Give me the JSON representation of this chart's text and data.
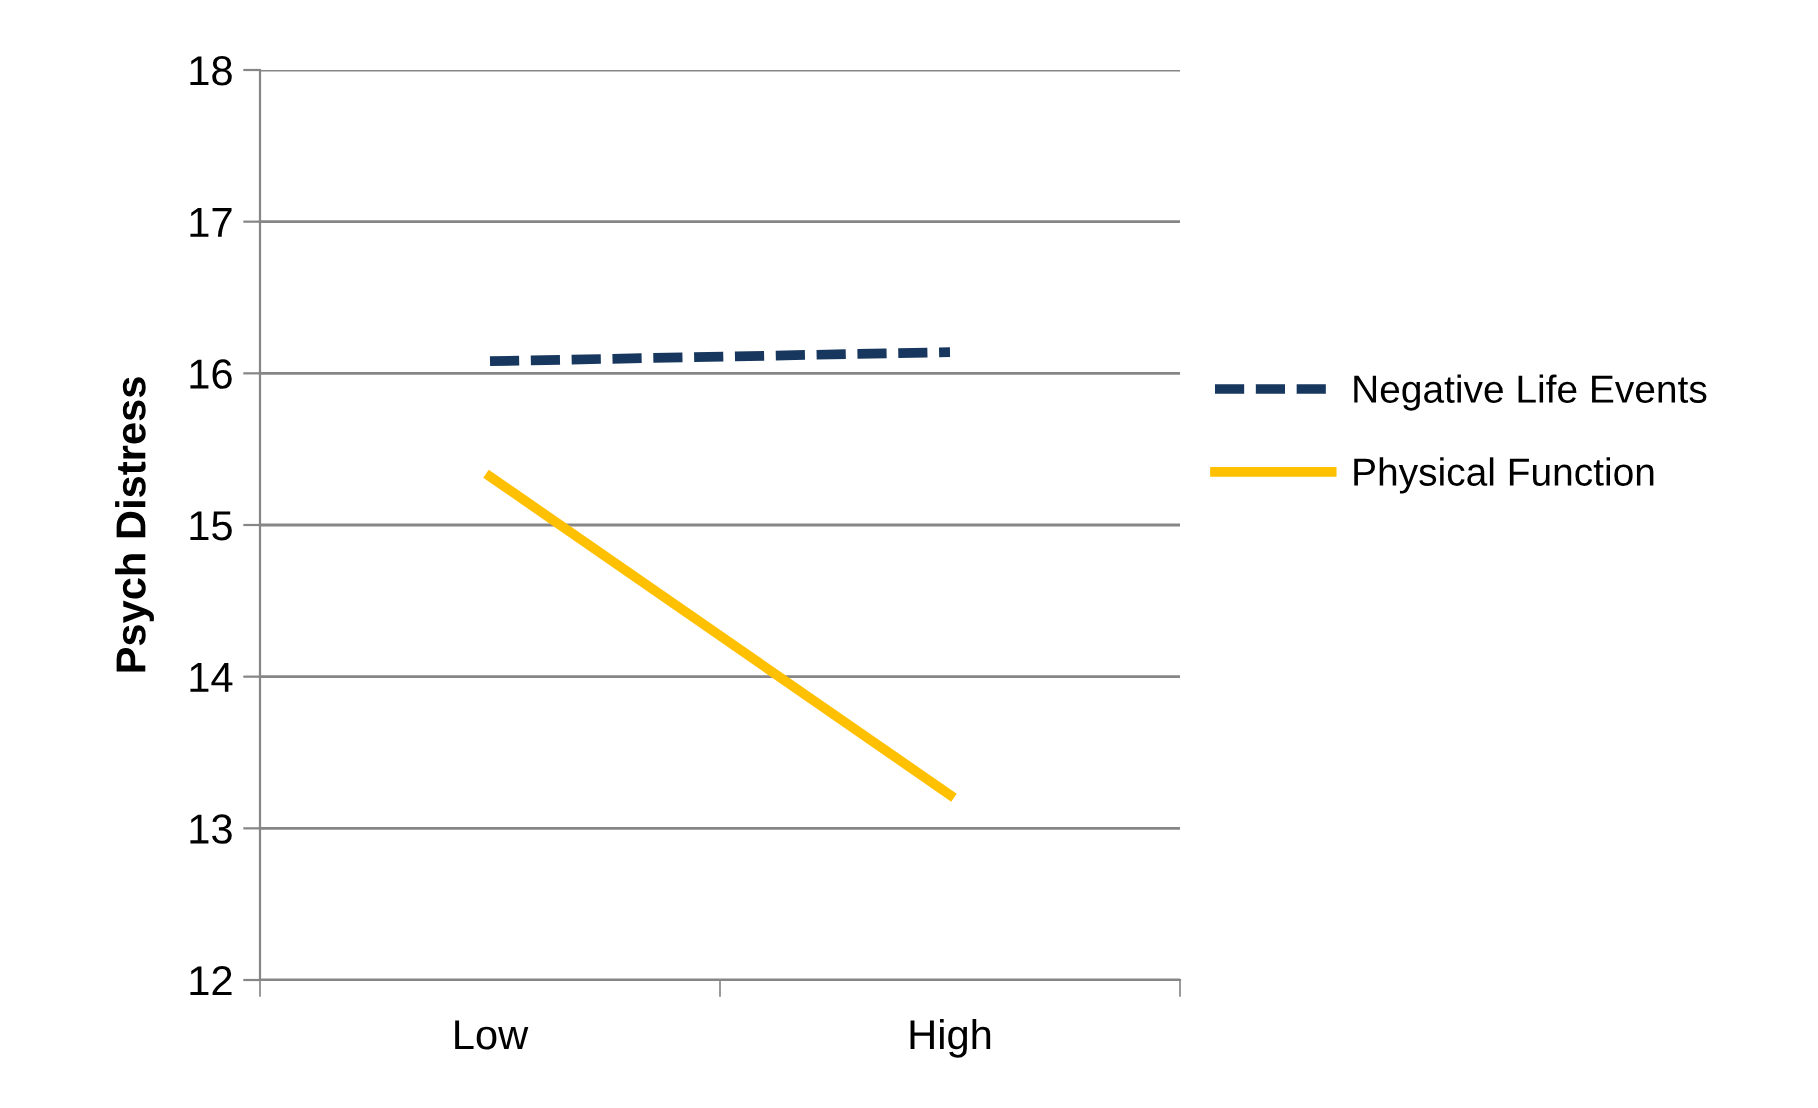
{
  "chart_data": {
    "type": "line",
    "ylabel": "Psych Distress",
    "categories": [
      "Low",
      "High"
    ],
    "series": [
      {
        "name": "Negative Life Events",
        "color": "#17375e",
        "values": [
          16.08,
          16.14
        ],
        "line_style": "dashed"
      },
      {
        "name": "Physical Function",
        "color": "#ffc000",
        "values": [
          15.32,
          13.22
        ],
        "line_style": "solid"
      }
    ],
    "ylim": [
      12,
      18
    ],
    "yticks": [
      12,
      13,
      14,
      15,
      16,
      17,
      18
    ],
    "grid": "y",
    "legend": "right",
    "marker": "none"
  }
}
